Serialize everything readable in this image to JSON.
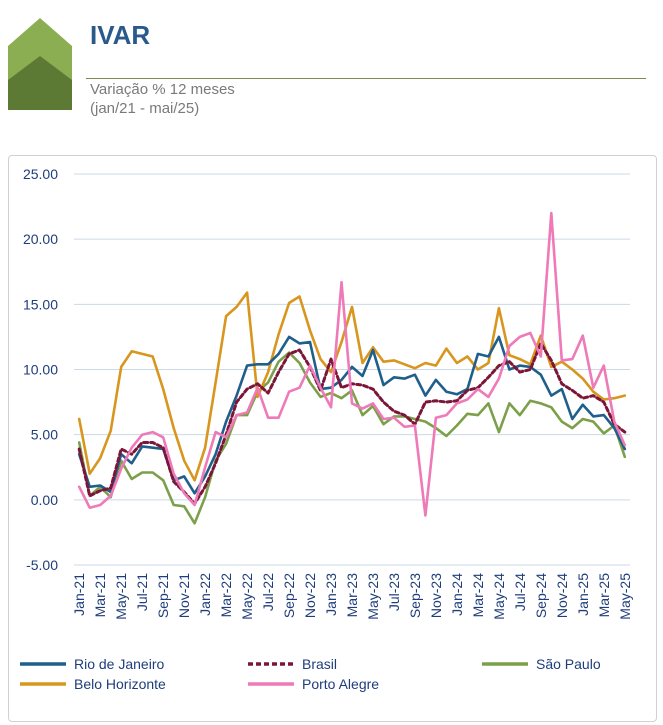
{
  "header": {
    "title": "IVAR",
    "subtitle_line1": "Variação % 12 meses",
    "subtitle_line2": "(jan/21 - mai/25)"
  },
  "colors": {
    "logo_light": "#8cae52",
    "logo_dark": "#5d7a35",
    "grid": "#c9d9ea"
  },
  "chart_data": {
    "type": "line",
    "title": "",
    "xlabel": "",
    "ylabel": "",
    "ylim": [
      -5,
      25
    ],
    "yticks": [
      "25.00",
      "20.00",
      "15.00",
      "10.00",
      "5.00",
      "0.00",
      "-5.00"
    ],
    "ytick_values": [
      25,
      20,
      15,
      10,
      5,
      0,
      -5
    ],
    "grid": "horizontal",
    "legend_position": "bottom",
    "x": [
      "Jan-21",
      "Feb-21",
      "Mar-21",
      "Apr-21",
      "May-21",
      "Jun-21",
      "Jul-21",
      "Aug-21",
      "Sep-21",
      "Oct-21",
      "Nov-21",
      "Dec-21",
      "Jan-22",
      "Feb-22",
      "Mar-22",
      "Apr-22",
      "May-22",
      "Jun-22",
      "Jul-22",
      "Aug-22",
      "Sep-22",
      "Oct-22",
      "Nov-22",
      "Dec-22",
      "Jan-23",
      "Feb-23",
      "Mar-23",
      "Apr-23",
      "May-23",
      "Jun-23",
      "Jul-23",
      "Aug-23",
      "Sep-23",
      "Oct-23",
      "Nov-23",
      "Dec-23",
      "Jan-24",
      "Feb-24",
      "Mar-24",
      "Apr-24",
      "May-24",
      "Jun-24",
      "Jul-24",
      "Aug-24",
      "Sep-24",
      "Oct-24",
      "Nov-24",
      "Dec-24",
      "Jan-25",
      "Feb-25",
      "Mar-25",
      "Apr-25",
      "May-25"
    ],
    "xtick_labels": [
      "Jan-21",
      "Mar-21",
      "May-21",
      "Jul-21",
      "Sep-21",
      "Nov-21",
      "Jan-22",
      "Mar-22",
      "May-22",
      "Jul-22",
      "Sep-22",
      "Nov-22",
      "Jan-23",
      "Mar-23",
      "May-23",
      "Jul-23",
      "Sep-23",
      "Nov-23",
      "Jan-24",
      "Mar-24",
      "May-24",
      "Jul-24",
      "Sep-24",
      "Nov-24",
      "Jan-25",
      "Mar-25",
      "May-25"
    ],
    "series": [
      {
        "name": "Rio de Janeiro",
        "color": "#1f5f8b",
        "dash": "solid",
        "values": [
          3.5,
          1.0,
          1.1,
          0.6,
          3.5,
          2.8,
          4.1,
          4.0,
          3.9,
          1.5,
          1.8,
          0.5,
          1.8,
          3.5,
          6.0,
          8.0,
          10.3,
          10.4,
          10.4,
          11.2,
          12.5,
          12.0,
          12.1,
          8.5,
          8.6,
          9.2,
          10.2,
          9.5,
          11.5,
          8.8,
          9.4,
          9.3,
          9.6,
          8.0,
          9.2,
          8.3,
          8.1,
          8.5,
          11.2,
          11.0,
          12.5,
          10.0,
          10.3,
          10.2,
          9.6,
          8.0,
          8.5,
          6.2,
          7.3,
          6.4,
          6.5,
          5.5,
          3.9
        ]
      },
      {
        "name": "Brasil",
        "color": "#7b1638",
        "dash": "dashed",
        "values": [
          3.9,
          0.3,
          0.7,
          0.9,
          3.9,
          3.5,
          4.4,
          4.4,
          4.0,
          1.4,
          0.6,
          -0.3,
          1.0,
          2.8,
          5.0,
          7.5,
          8.5,
          8.9,
          8.2,
          9.8,
          11.2,
          11.5,
          10.2,
          8.4,
          10.8,
          8.6,
          8.9,
          8.8,
          8.5,
          7.5,
          6.8,
          6.5,
          5.8,
          7.5,
          7.6,
          7.5,
          7.6,
          8.4,
          8.6,
          9.4,
          10.3,
          10.6,
          9.8,
          10.0,
          12.0,
          10.7,
          8.9,
          8.4,
          7.8,
          8.0,
          7.5,
          5.8,
          5.2
        ]
      },
      {
        "name": "São Paulo",
        "color": "#7ca04a",
        "dash": "solid",
        "values": [
          4.4,
          0.3,
          1.0,
          0.2,
          3.0,
          1.6,
          2.1,
          2.1,
          1.5,
          -0.4,
          -0.5,
          -1.8,
          0.2,
          3.0,
          4.3,
          6.5,
          6.5,
          8.3,
          9.0,
          10.6,
          11.3,
          10.5,
          9.0,
          7.9,
          8.2,
          7.8,
          8.4,
          6.5,
          7.2,
          5.8,
          6.4,
          6.4,
          6.2,
          6.0,
          5.5,
          4.9,
          5.7,
          6.6,
          6.5,
          7.4,
          5.2,
          7.4,
          6.5,
          7.6,
          7.4,
          7.1,
          6.0,
          5.5,
          6.2,
          6.0,
          5.1,
          5.7,
          3.3
        ]
      },
      {
        "name": "Belo Horizonte",
        "color": "#d8961e",
        "dash": "solid",
        "values": [
          6.2,
          2.0,
          3.2,
          5.3,
          10.2,
          11.4,
          11.2,
          11.0,
          8.5,
          5.5,
          3.0,
          1.5,
          4.0,
          9.0,
          14.1,
          14.8,
          15.9,
          7.9,
          9.8,
          12.7,
          15.1,
          15.6,
          13.0,
          10.8,
          9.8,
          12.1,
          14.8,
          10.5,
          11.7,
          10.6,
          10.7,
          10.4,
          10.1,
          10.5,
          10.3,
          11.6,
          10.5,
          11.0,
          10.0,
          10.5,
          14.7,
          11.1,
          10.8,
          10.4,
          12.6,
          10.2,
          10.6,
          10.0,
          9.3,
          8.3,
          7.7,
          7.8,
          8.0
        ]
      },
      {
        "name": "Porto Alegre",
        "color": "#ee7ab8",
        "dash": "solid",
        "values": [
          1.0,
          -0.6,
          -0.4,
          0.3,
          2.4,
          4.0,
          5.0,
          5.2,
          4.8,
          2.0,
          0.5,
          -0.4,
          2.5,
          5.2,
          4.8,
          6.5,
          6.7,
          8.6,
          6.3,
          6.3,
          8.3,
          8.6,
          10.3,
          8.6,
          7.1,
          16.7,
          7.4,
          7.0,
          7.4,
          6.2,
          6.3,
          5.6,
          5.7,
          -1.2,
          6.3,
          6.5,
          7.4,
          7.7,
          8.5,
          7.9,
          9.3,
          11.8,
          12.5,
          12.8,
          11.0,
          22.0,
          10.7,
          10.8,
          12.6,
          8.6,
          10.3,
          6.0,
          4.2
        ]
      }
    ]
  }
}
